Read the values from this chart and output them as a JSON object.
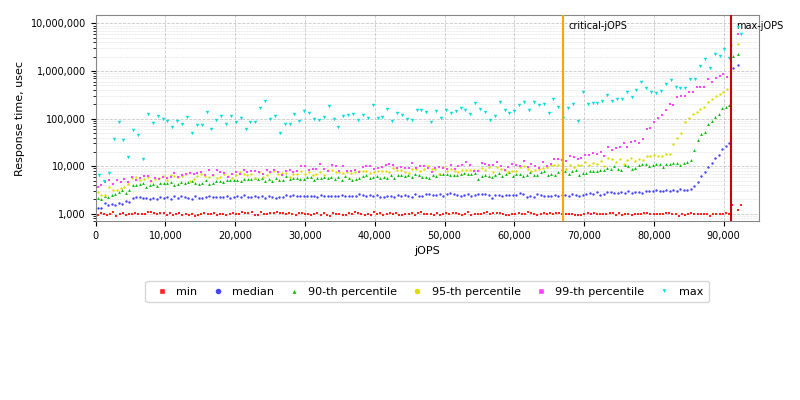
{
  "title": "",
  "xlabel": "jOPS",
  "ylabel": "Response time, usec",
  "xlim": [
    0,
    95000
  ],
  "ylim": [
    700,
    15000000
  ],
  "critical_jops": 67000,
  "max_jops": 91000,
  "series": {
    "min": {
      "color": "#ff2020",
      "marker": "s",
      "label": "min"
    },
    "median": {
      "color": "#4444ff",
      "marker": "o",
      "label": "median"
    },
    "p90": {
      "color": "#00bb00",
      "marker": "^",
      "label": "90-th percentile"
    },
    "p95": {
      "color": "#dddd00",
      "marker": "o",
      "label": "95-th percentile"
    },
    "p99": {
      "color": "#ff44ff",
      "marker": "s",
      "label": "99-th percentile"
    },
    "max": {
      "color": "#00dddd",
      "marker": "v",
      "label": "max"
    }
  },
  "legend_fontsize": 8,
  "tick_fontsize": 7,
  "label_fontsize": 8,
  "background_color": "#ffffff",
  "grid_color": "#bbbbbb"
}
